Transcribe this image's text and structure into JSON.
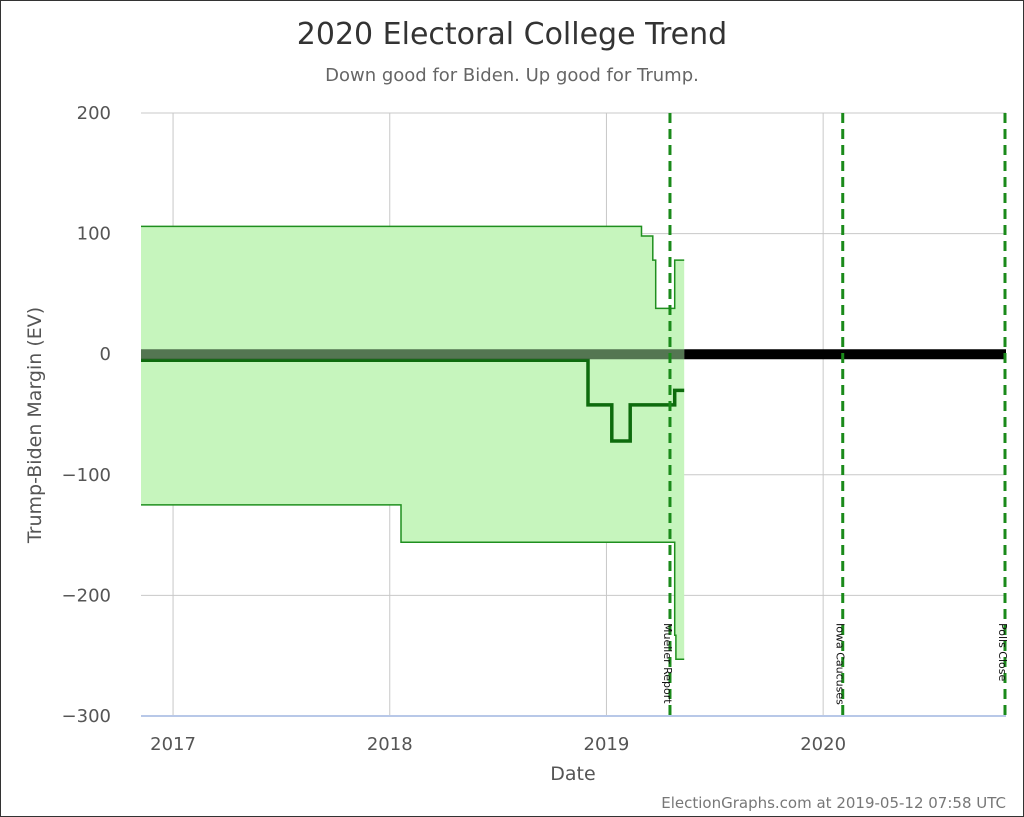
{
  "chart_data": {
    "type": "line",
    "title": "2020 Electoral College Trend",
    "subtitle": "Down good for Biden. Up good for Trump.",
    "xlabel": "Date",
    "ylabel": "Trump-Biden Margin (EV)",
    "credit": "ElectionGraphs.com at 2019-05-12 07:58 UTC",
    "ylim": [
      -300,
      200
    ],
    "xlim": [
      "2016-11-08",
      "2020-11-04"
    ],
    "y_ticks": [
      "200",
      "100",
      "0",
      "−100",
      "−200",
      "−300"
    ],
    "x_ticks": [
      "2017",
      "2018",
      "2019",
      "2020"
    ],
    "grid": true,
    "colors": {
      "band_fill": "#c6f5bd",
      "band_edge": "#1f8f1f",
      "expected": "#0d6b0d",
      "tie_line": "#000000",
      "event_line": "#1a8a1a"
    },
    "series": [
      {
        "name": "",
        "role": "upper-bound",
        "x": [
          "2016-11-08",
          "2019-03-01",
          "2019-03-01",
          "2019-03-20",
          "2019-03-20",
          "2019-03-25",
          "2019-03-25",
          "2019-04-06",
          "2019-04-06",
          "2019-04-22",
          "2019-04-22",
          "2019-04-26",
          "2019-04-26",
          "2019-05-12"
        ],
        "y": [
          106,
          106,
          98,
          98,
          78,
          78,
          38,
          38,
          38,
          38,
          38,
          38,
          78,
          78
        ]
      },
      {
        "name": "",
        "role": "expected",
        "x": [
          "2016-11-08",
          "2018-12-01",
          "2018-12-01",
          "2019-01-10",
          "2019-01-10",
          "2019-02-10",
          "2019-02-10",
          "2019-04-22",
          "2019-04-22",
          "2019-04-26",
          "2019-04-26",
          "2019-05-12"
        ],
        "y": [
          -5,
          -5,
          -42,
          -42,
          -72,
          -72,
          -42,
          -42,
          -42,
          -42,
          -30,
          -30
        ]
      },
      {
        "name": "",
        "role": "lower-bound",
        "x": [
          "2016-11-08",
          "2018-01-20",
          "2018-01-20",
          "2019-04-20",
          "2019-04-20",
          "2019-04-26",
          "2019-04-26",
          "2019-04-28",
          "2019-04-28",
          "2019-05-12"
        ],
        "y": [
          -125,
          -125,
          -156,
          -156,
          -156,
          -156,
          -233,
          -233,
          -253,
          -253
        ]
      }
    ],
    "events": [
      {
        "date": "2019-04-18",
        "label": "Mueller Report"
      },
      {
        "date": "2020-02-03",
        "label": "Iowa Caucuses"
      },
      {
        "date": "2020-11-03",
        "label": "Polls Close"
      }
    ]
  }
}
